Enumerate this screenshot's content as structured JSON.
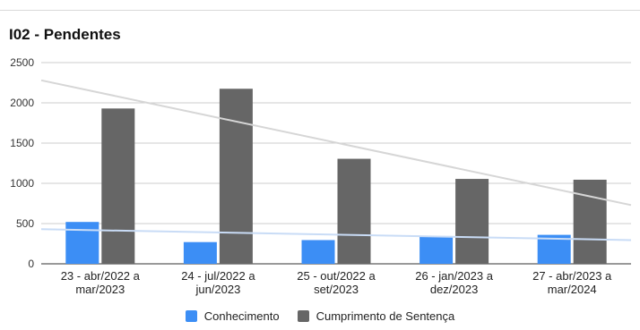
{
  "chart_data": {
    "type": "bar",
    "title": "I02 - Pendentes",
    "categories": [
      [
        "23 - abr/2022 a",
        "mar/2023"
      ],
      [
        "24 - jul/2022 a",
        "jun/2023"
      ],
      [
        "25 - out/2022 a",
        "set/2023"
      ],
      [
        "26 - jan/2023 a",
        "dez/2023"
      ],
      [
        "27 - abr/2023 a",
        "mar/2024"
      ]
    ],
    "series": [
      {
        "name": "Conhecimento",
        "color": "#3c8ef5",
        "values": [
          520,
          270,
          295,
          345,
          360
        ]
      },
      {
        "name": "Cumprimento de Sentença",
        "color": "#666666",
        "values": [
          1930,
          2175,
          1305,
          1055,
          1045
        ]
      }
    ],
    "trendlines": [
      {
        "series": "Conhecimento",
        "color": "#c9dcf6",
        "start": 430,
        "end": 295
      },
      {
        "series": "Cumprimento de Sentença",
        "color": "#d6d6d6",
        "start": 2280,
        "end": 730
      }
    ],
    "yticks": [
      "0",
      "500",
      "1000",
      "1500",
      "2000",
      "2500"
    ],
    "ylim": [
      0,
      2500
    ],
    "grid": true,
    "legend_position": "bottom",
    "xlabel": "",
    "ylabel": ""
  }
}
